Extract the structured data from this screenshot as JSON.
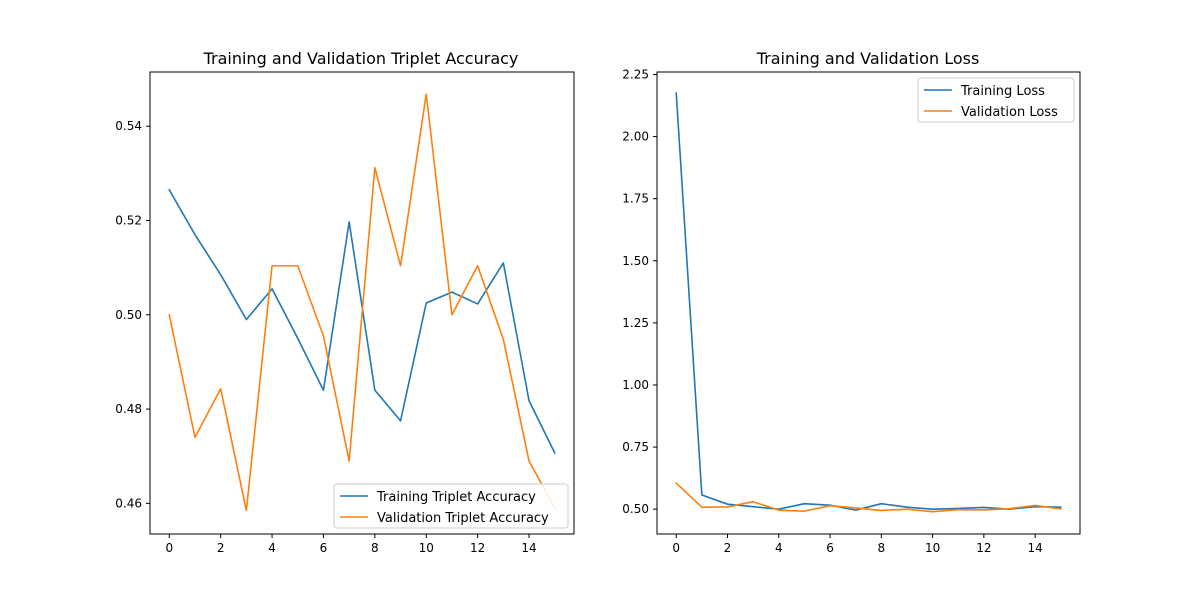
{
  "chart_data": [
    {
      "type": "line",
      "title": "Training and Validation Triplet Accuracy",
      "xlabel": "",
      "ylabel": "",
      "xlim": [
        -0.75,
        15.75
      ],
      "ylim": [
        0.4535,
        0.5515
      ],
      "xticks": [
        0,
        2,
        4,
        6,
        8,
        10,
        12,
        14
      ],
      "xtick_labels": [
        "0",
        "2",
        "4",
        "6",
        "8",
        "10",
        "12",
        "14"
      ],
      "yticks": [
        0.46,
        0.48,
        0.5,
        0.52,
        0.54
      ],
      "ytick_labels": [
        "0.46",
        "0.48",
        "0.50",
        "0.52",
        "0.54"
      ],
      "x": [
        0,
        1,
        2,
        3,
        4,
        5,
        6,
        7,
        8,
        9,
        10,
        11,
        12,
        13,
        14,
        15
      ],
      "series": [
        {
          "name": "Training Triplet Accuracy",
          "color": "#1f77b4",
          "values": [
            0.5265,
            0.517,
            0.5085,
            0.499,
            0.5055,
            0.495,
            0.484,
            0.5197,
            0.484,
            0.4775,
            0.5025,
            0.5048,
            0.5023,
            0.511,
            0.4818,
            0.4707
          ]
        },
        {
          "name": "Validation Triplet Accuracy",
          "color": "#ff7f0e",
          "values": [
            0.5,
            0.474,
            0.4843,
            0.4585,
            0.5104,
            0.5104,
            0.4955,
            0.469,
            0.5312,
            0.5104,
            0.5468,
            0.5,
            0.5104,
            0.4948,
            0.469,
            0.459
          ]
        }
      ],
      "grid": false,
      "legend_position": "lower right"
    },
    {
      "type": "line",
      "title": "Training and Validation Loss",
      "xlabel": "",
      "ylabel": "",
      "xlim": [
        -0.75,
        15.75
      ],
      "ylim": [
        0.4,
        2.26
      ],
      "xticks": [
        0,
        2,
        4,
        6,
        8,
        10,
        12,
        14
      ],
      "xtick_labels": [
        "0",
        "2",
        "4",
        "6",
        "8",
        "10",
        "12",
        "14"
      ],
      "yticks": [
        0.5,
        0.75,
        1.0,
        1.25,
        1.5,
        1.75,
        2.0,
        2.25
      ],
      "ytick_labels": [
        "0.50",
        "0.75",
        "1.00",
        "1.25",
        "1.50",
        "1.75",
        "2.00",
        "2.25"
      ],
      "x": [
        0,
        1,
        2,
        3,
        4,
        5,
        6,
        7,
        8,
        9,
        10,
        11,
        12,
        13,
        14,
        15
      ],
      "series": [
        {
          "name": "Training Loss",
          "color": "#1f77b4",
          "values": [
            2.175,
            0.557,
            0.52,
            0.51,
            0.5,
            0.522,
            0.516,
            0.496,
            0.522,
            0.508,
            0.5,
            0.503,
            0.507,
            0.5,
            0.51,
            0.508
          ]
        },
        {
          "name": "Validation Loss",
          "color": "#ff7f0e",
          "values": [
            0.605,
            0.508,
            0.509,
            0.53,
            0.496,
            0.492,
            0.514,
            0.505,
            0.495,
            0.5,
            0.49,
            0.498,
            0.497,
            0.502,
            0.515,
            0.501
          ]
        }
      ],
      "grid": false,
      "legend_position": "upper right"
    }
  ]
}
